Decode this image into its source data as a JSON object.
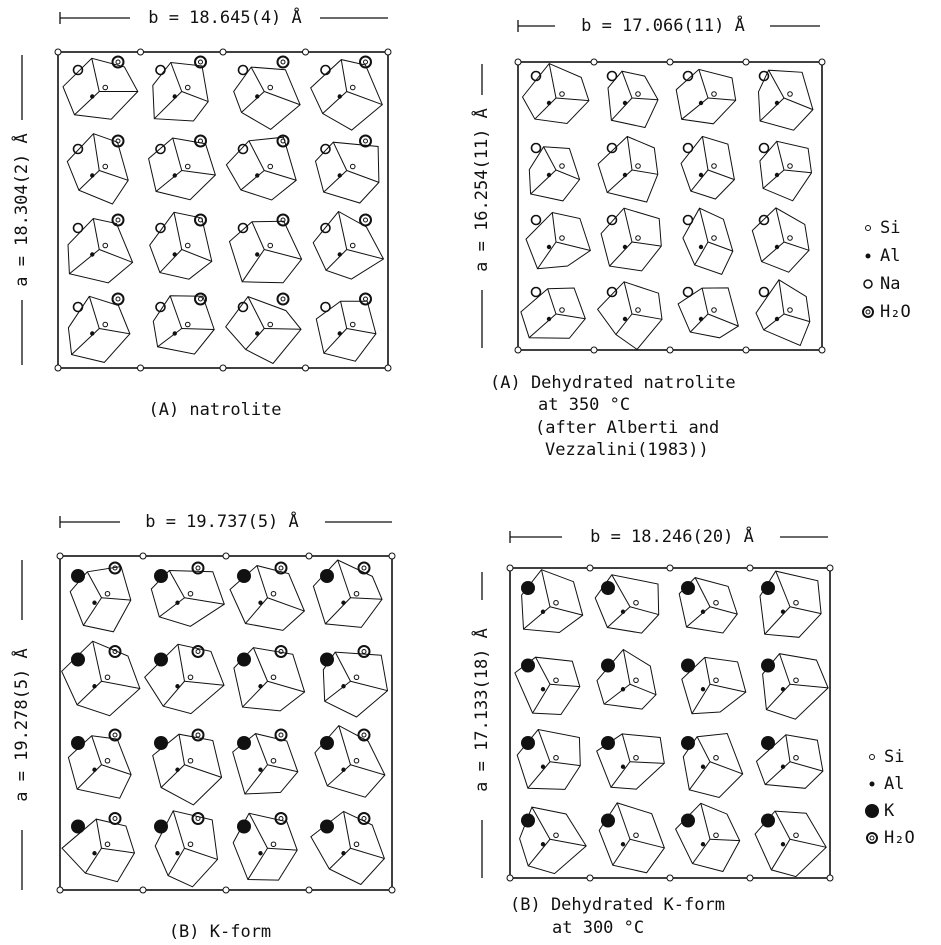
{
  "panels": [
    {
      "b_label": "b = 18.645(4) Å",
      "a_label": "a = 18.304(2) Å",
      "caption": [
        "(A) natrolite"
      ]
    },
    {
      "b_label": "b = 17.066(11) Å",
      "a_label": "a = 16.254(11) Å",
      "caption": [
        "(A) Dehydrated natrolite",
        "at 350 °C",
        "(after Alberti and",
        "Vezzalini(1983))"
      ]
    },
    {
      "b_label": "b = 19.737(5) Å",
      "a_label": "a = 19.278(5) Å",
      "caption": [
        "(B) K-form"
      ]
    },
    {
      "b_label": "b = 18.246(20) Å",
      "a_label": "a = 17.133(18) Å",
      "caption": [
        "(B) Dehydrated K-form",
        "at 300 °C"
      ]
    }
  ],
  "legends": [
    {
      "items": [
        "Si",
        "Al",
        "Na",
        "H₂O"
      ]
    },
    {
      "items": [
        "Si",
        "Al",
        "K",
        "H₂O"
      ]
    }
  ]
}
